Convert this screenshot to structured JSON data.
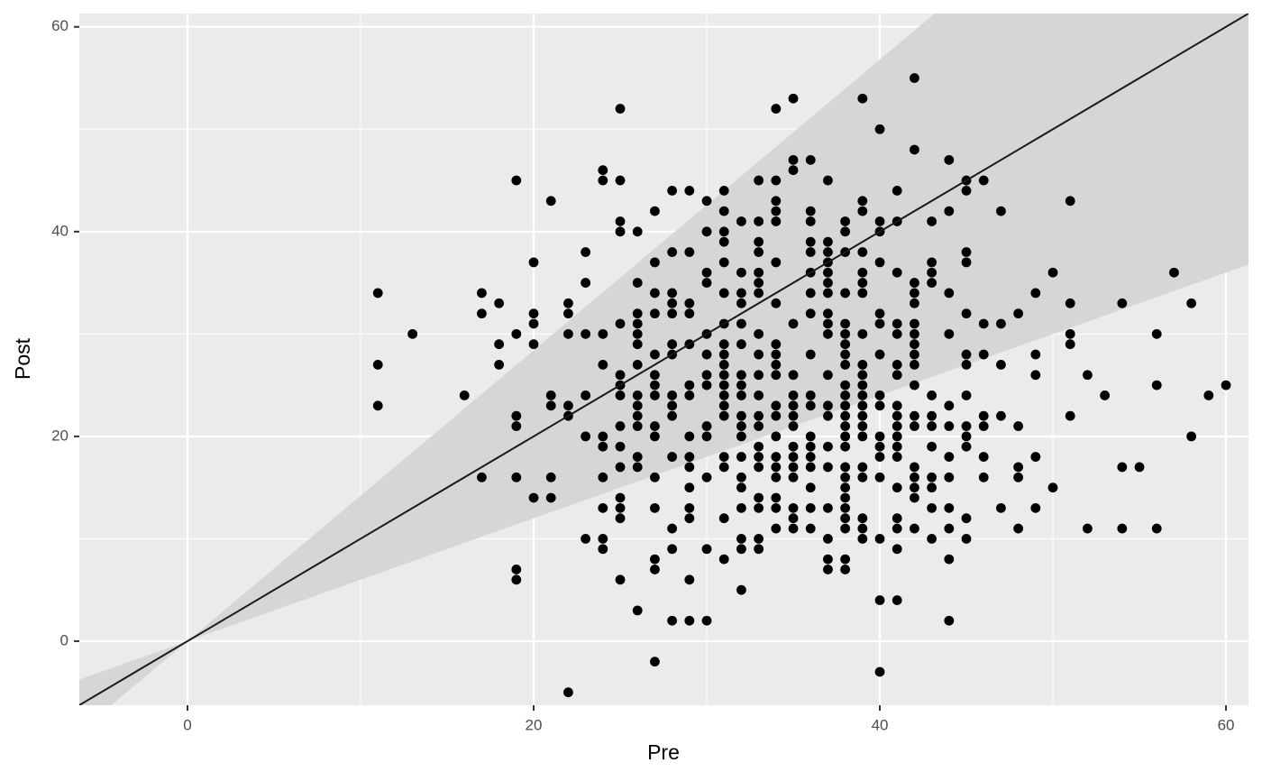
{
  "chart_data": {
    "type": "scatter",
    "x_label": "Pre",
    "y_label": "Post",
    "color": "#000000",
    "xlim": [
      -6.25,
      61.3
    ],
    "ylim": [
      -6.26,
      61.3
    ],
    "xticks": [
      0,
      20,
      40,
      60
    ],
    "yticks": [
      0,
      20,
      40,
      60
    ],
    "xminor_ticks": [
      10,
      30,
      50
    ],
    "yminor_ticks": [
      10,
      30,
      50
    ],
    "grid": true,
    "reference_line": {
      "slope": 1,
      "color": "#1a1a1a"
    },
    "band": {
      "lower_slope": 0.6,
      "upper_slope": 1.42,
      "color": "#d6d6d6"
    },
    "x": [
      11,
      11,
      11,
      13,
      16,
      17,
      17,
      17,
      18,
      18,
      18,
      19,
      19,
      19,
      19,
      19,
      19,
      19,
      20,
      20,
      20,
      20,
      20,
      21,
      21,
      21,
      21,
      21,
      22,
      22,
      22,
      22,
      22,
      22,
      23,
      23,
      23,
      23,
      23,
      23,
      24,
      24,
      24,
      24,
      24,
      24,
      24,
      24,
      24,
      24,
      25,
      25,
      25,
      25,
      25,
      25,
      25,
      25,
      25,
      25,
      25,
      25,
      25,
      25,
      25,
      26,
      26,
      26,
      26,
      26,
      26,
      26,
      26,
      26,
      26,
      26,
      26,
      26,
      26,
      27,
      27,
      27,
      27,
      27,
      27,
      27,
      27,
      27,
      27,
      27,
      27,
      27,
      27,
      27,
      28,
      28,
      28,
      28,
      28,
      28,
      28,
      28,
      28,
      28,
      28,
      28,
      28,
      28,
      29,
      29,
      29,
      29,
      29,
      29,
      29,
      29,
      29,
      29,
      29,
      29,
      29,
      29,
      29,
      30,
      30,
      30,
      30,
      30,
      30,
      30,
      30,
      30,
      30,
      30,
      30,
      30,
      31,
      31,
      31,
      31,
      31,
      31,
      31,
      31,
      31,
      31,
      31,
      31,
      31,
      31,
      31,
      31,
      31,
      31,
      31,
      32,
      32,
      32,
      32,
      32,
      32,
      32,
      32,
      32,
      32,
      32,
      32,
      32,
      32,
      32,
      32,
      32,
      32,
      32,
      33,
      33,
      33,
      33,
      33,
      33,
      33,
      33,
      33,
      33,
      33,
      33,
      33,
      33,
      33,
      33,
      33,
      33,
      33,
      33,
      34,
      34,
      34,
      34,
      34,
      34,
      34,
      34,
      34,
      34,
      34,
      34,
      34,
      34,
      34,
      34,
      34,
      34,
      34,
      34,
      35,
      35,
      35,
      35,
      35,
      35,
      35,
      35,
      35,
      35,
      35,
      35,
      35,
      35,
      35,
      35,
      36,
      36,
      36,
      36,
      36,
      36,
      36,
      36,
      36,
      36,
      36,
      36,
      36,
      36,
      36,
      36,
      36,
      36,
      37,
      37,
      37,
      37,
      37,
      37,
      37,
      37,
      37,
      37,
      37,
      37,
      37,
      37,
      37,
      37,
      37,
      37,
      37,
      38,
      38,
      38,
      38,
      38,
      38,
      38,
      38,
      38,
      38,
      38,
      38,
      38,
      38,
      38,
      38,
      38,
      38,
      38,
      38,
      38,
      38,
      38,
      38,
      38,
      39,
      39,
      39,
      39,
      39,
      39,
      39,
      39,
      39,
      39,
      39,
      39,
      39,
      39,
      39,
      39,
      39,
      39,
      39,
      39,
      39,
      40,
      40,
      40,
      40,
      40,
      40,
      40,
      40,
      40,
      40,
      40,
      40,
      40,
      40,
      40,
      40,
      41,
      41,
      41,
      41,
      41,
      41,
      41,
      41,
      41,
      41,
      41,
      41,
      41,
      41,
      41,
      41,
      41,
      41,
      42,
      42,
      42,
      42,
      42,
      42,
      42,
      42,
      42,
      42,
      42,
      42,
      42,
      42,
      42,
      42,
      42,
      42,
      43,
      43,
      43,
      43,
      43,
      43,
      43,
      43,
      43,
      43,
      43,
      43,
      44,
      44,
      44,
      44,
      44,
      44,
      44,
      44,
      44,
      44,
      44,
      44,
      45,
      45,
      45,
      45,
      45,
      45,
      45,
      45,
      45,
      45,
      45,
      45,
      45,
      46,
      46,
      46,
      46,
      46,
      46,
      46,
      47,
      47,
      47,
      47,
      47,
      48,
      48,
      48,
      48,
      48,
      49,
      49,
      49,
      49,
      49,
      50,
      50,
      51,
      51,
      51,
      51,
      51,
      52,
      52,
      53,
      54,
      54,
      54,
      55,
      56,
      56,
      56,
      57,
      58,
      58,
      59,
      60
    ],
    "values": [
      34,
      27,
      23,
      30,
      24,
      34,
      32,
      16,
      33,
      29,
      27,
      45,
      30,
      22,
      21,
      16,
      7,
      6,
      37,
      32,
      31,
      29,
      14,
      43,
      24,
      23,
      16,
      14,
      33,
      32,
      30,
      23,
      22,
      -5,
      38,
      35,
      30,
      24,
      20,
      10,
      46,
      45,
      30,
      27,
      20,
      19,
      16,
      13,
      10,
      9,
      52,
      45,
      41,
      40,
      31,
      26,
      25,
      24,
      21,
      19,
      17,
      14,
      13,
      12,
      6,
      40,
      35,
      32,
      31,
      30,
      29,
      27,
      24,
      23,
      22,
      21,
      18,
      17,
      3,
      42,
      37,
      34,
      32,
      28,
      26,
      25,
      24,
      21,
      20,
      16,
      13,
      8,
      7,
      -2,
      44,
      38,
      34,
      33,
      32,
      29,
      28,
      24,
      23,
      22,
      18,
      11,
      9,
      2,
      44,
      38,
      33,
      32,
      29,
      25,
      24,
      20,
      18,
      17,
      15,
      13,
      12,
      6,
      2,
      43,
      40,
      36,
      35,
      30,
      28,
      26,
      25,
      21,
      20,
      16,
      9,
      2,
      44,
      42,
      40,
      39,
      37,
      34,
      31,
      29,
      28,
      27,
      26,
      25,
      24,
      23,
      22,
      18,
      17,
      12,
      8,
      41,
      36,
      34,
      33,
      31,
      29,
      26,
      25,
      24,
      22,
      21,
      20,
      18,
      16,
      15,
      13,
      10,
      9,
      5,
      45,
      41,
      39,
      38,
      36,
      35,
      34,
      30,
      28,
      26,
      24,
      22,
      21,
      19,
      18,
      17,
      14,
      13,
      10,
      9,
      52,
      45,
      43,
      42,
      41,
      37,
      33,
      29,
      28,
      27,
      26,
      23,
      22,
      20,
      18,
      17,
      16,
      14,
      13,
      11,
      53,
      47,
      46,
      31,
      26,
      24,
      23,
      22,
      21,
      19,
      18,
      17,
      16,
      13,
      12,
      11,
      47,
      42,
      41,
      39,
      38,
      36,
      34,
      32,
      28,
      24,
      23,
      20,
      19,
      18,
      17,
      15,
      13,
      11,
      45,
      39,
      38,
      37,
      36,
      35,
      34,
      32,
      31,
      30,
      26,
      23,
      22,
      19,
      17,
      13,
      10,
      8,
      7,
      41,
      40,
      38,
      34,
      31,
      30,
      29,
      28,
      27,
      25,
      24,
      23,
      22,
      21,
      20,
      19,
      17,
      16,
      15,
      14,
      13,
      12,
      11,
      8,
      7,
      53,
      43,
      42,
      38,
      36,
      35,
      34,
      30,
      27,
      26,
      25,
      24,
      23,
      22,
      21,
      20,
      17,
      16,
      12,
      11,
      10,
      50,
      41,
      40,
      37,
      32,
      31,
      28,
      24,
      23,
      20,
      19,
      18,
      16,
      10,
      4,
      -3,
      44,
      41,
      36,
      31,
      30,
      27,
      26,
      23,
      22,
      21,
      20,
      19,
      18,
      15,
      12,
      11,
      9,
      4,
      55,
      48,
      35,
      34,
      33,
      31,
      30,
      29,
      28,
      27,
      25,
      22,
      21,
      17,
      16,
      15,
      14,
      11,
      41,
      37,
      36,
      35,
      24,
      22,
      21,
      19,
      16,
      15,
      13,
      10,
      47,
      42,
      34,
      30,
      23,
      21,
      18,
      16,
      13,
      11,
      8,
      2,
      45,
      44,
      38,
      37,
      32,
      28,
      27,
      24,
      21,
      20,
      19,
      12,
      10,
      45,
      31,
      28,
      22,
      21,
      18,
      16,
      42,
      31,
      27,
      22,
      13,
      32,
      21,
      17,
      16,
      11,
      34,
      28,
      26,
      18,
      13,
      36,
      15,
      43,
      33,
      30,
      29,
      22,
      26,
      11,
      24,
      33,
      17,
      11,
      17,
      30,
      25,
      11,
      36,
      33,
      20,
      24,
      25
    ]
  }
}
